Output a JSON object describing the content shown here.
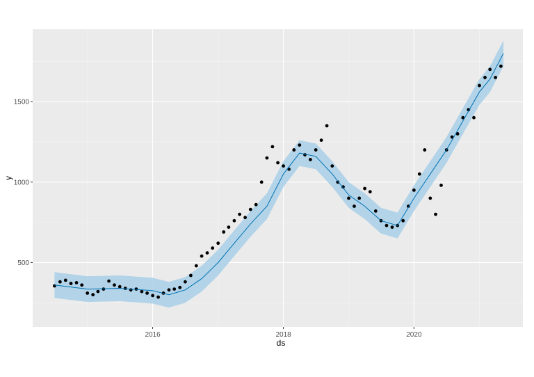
{
  "chart_data": {
    "type": "scatter",
    "title": "",
    "xlabel": "ds",
    "ylabel": "y",
    "x_ticks": [
      "2016",
      "2018",
      "2020"
    ],
    "y_ticks": [
      "500",
      "1000",
      "1500"
    ],
    "xlim": [
      "2014-03-01",
      "2021-09-01"
    ],
    "ylim": [
      100,
      1950
    ],
    "grid": true,
    "legend": "none",
    "colors": {
      "panel": "#ebebeb",
      "grid_major": "#ffffff",
      "grid_minor": "#f5f5f5",
      "points": "#000000",
      "forecast_line": "#0072b2",
      "interval_band": "#a8cfe8"
    },
    "series": [
      {
        "kind": "observed_points",
        "x": [
          "2014-07-01",
          "2014-08-01",
          "2014-09-01",
          "2014-10-01",
          "2014-11-01",
          "2014-12-01",
          "2015-01-01",
          "2015-02-01",
          "2015-03-01",
          "2015-04-01",
          "2015-05-01",
          "2015-06-01",
          "2015-07-01",
          "2015-08-01",
          "2015-09-01",
          "2015-10-01",
          "2015-11-01",
          "2015-12-01",
          "2016-01-01",
          "2016-02-01",
          "2016-03-01",
          "2016-04-01",
          "2016-05-01",
          "2016-06-01",
          "2016-07-01",
          "2016-08-01",
          "2016-09-01",
          "2016-10-01",
          "2016-11-01",
          "2016-12-01",
          "2017-01-01",
          "2017-02-01",
          "2017-03-01",
          "2017-04-01",
          "2017-05-01",
          "2017-06-01",
          "2017-07-01",
          "2017-08-01",
          "2017-09-01",
          "2017-10-01",
          "2017-11-01",
          "2017-12-01",
          "2018-01-01",
          "2018-02-01",
          "2018-03-01",
          "2018-04-01",
          "2018-05-01",
          "2018-06-01",
          "2018-07-01",
          "2018-08-01",
          "2018-09-01",
          "2018-10-01",
          "2018-11-01",
          "2018-12-01",
          "2019-01-01",
          "2019-02-01",
          "2019-03-01",
          "2019-04-01",
          "2019-05-01",
          "2019-06-01",
          "2019-07-01",
          "2019-08-01",
          "2019-09-01",
          "2019-10-01",
          "2019-11-01",
          "2019-12-01",
          "2020-01-01",
          "2020-02-01",
          "2020-03-01",
          "2020-04-01",
          "2020-05-01",
          "2020-06-01",
          "2020-07-01",
          "2020-08-01",
          "2020-09-01",
          "2020-10-01",
          "2020-11-01",
          "2020-12-01",
          "2021-01-01",
          "2021-02-01",
          "2021-03-01",
          "2021-04-01",
          "2021-05-01"
        ],
        "values": [
          355,
          380,
          390,
          370,
          375,
          360,
          310,
          300,
          320,
          335,
          385,
          360,
          350,
          340,
          330,
          335,
          320,
          310,
          295,
          285,
          310,
          330,
          335,
          345,
          380,
          420,
          480,
          540,
          560,
          590,
          620,
          690,
          720,
          760,
          800,
          780,
          830,
          860,
          1000,
          1150,
          1220,
          1120,
          1100,
          1080,
          1200,
          1230,
          1170,
          1140,
          1200,
          1260,
          1350,
          1100,
          1000,
          970,
          900,
          850,
          900,
          960,
          940,
          820,
          760,
          730,
          720,
          730,
          760,
          850,
          950,
          1050,
          1200,
          900,
          800,
          980,
          1200,
          1280,
          1300,
          1400,
          1450,
          1400,
          1600,
          1650,
          1700,
          1650,
          1720
        ]
      },
      {
        "kind": "forecast",
        "x": [
          "2014-07-01",
          "2015-01-01",
          "2015-07-01",
          "2016-01-01",
          "2016-04-01",
          "2016-07-01",
          "2016-10-01",
          "2017-01-01",
          "2017-04-01",
          "2017-07-01",
          "2017-10-01",
          "2018-01-01",
          "2018-04-01",
          "2018-07-01",
          "2018-10-01",
          "2019-01-01",
          "2019-04-01",
          "2019-07-01",
          "2019-10-01",
          "2020-01-01",
          "2020-04-01",
          "2020-07-01",
          "2020-10-01",
          "2021-01-01",
          "2021-03-01",
          "2021-05-15"
        ],
        "values": [
          360,
          335,
          340,
          325,
          300,
          330,
          400,
          500,
          620,
          740,
          850,
          1050,
          1180,
          1160,
          1050,
          920,
          850,
          760,
          730,
          900,
          1050,
          1200,
          1380,
          1560,
          1640,
          1800
        ],
        "lower": [
          280,
          255,
          260,
          245,
          220,
          250,
          320,
          420,
          540,
          660,
          770,
          970,
          1100,
          1080,
          970,
          840,
          770,
          680,
          650,
          820,
          970,
          1120,
          1300,
          1480,
          1560,
          1720
        ],
        "upper": [
          440,
          415,
          420,
          405,
          380,
          410,
          480,
          580,
          700,
          820,
          930,
          1130,
          1260,
          1240,
          1130,
          1000,
          930,
          840,
          810,
          980,
          1130,
          1280,
          1460,
          1640,
          1720,
          1880
        ]
      }
    ]
  }
}
